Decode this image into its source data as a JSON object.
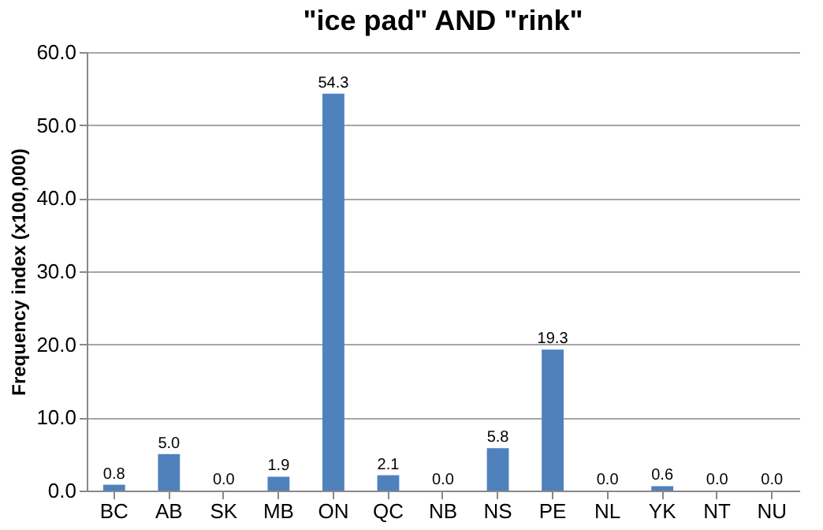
{
  "chart_data": {
    "type": "bar",
    "title": "\"ice pad\" AND \"rink\"",
    "ylabel": "Frequency index (x100,000)",
    "categories": [
      "BC",
      "AB",
      "SK",
      "MB",
      "ON",
      "QC",
      "NB",
      "NS",
      "PE",
      "NL",
      "YK",
      "NT",
      "NU"
    ],
    "values": [
      0.8,
      5.0,
      0.0,
      1.9,
      54.3,
      2.1,
      0.0,
      5.8,
      19.3,
      0.0,
      0.6,
      0.0,
      0.0
    ],
    "value_labels": [
      "0.8",
      "5.0",
      "0.0",
      "1.9",
      "54.3",
      "2.1",
      "0.0",
      "5.8",
      "19.3",
      "0.0",
      "0.6",
      "0.0",
      "0.0"
    ],
    "color": "#4f81bd",
    "ylim": [
      0,
      60
    ],
    "yticks": [
      {
        "value": 0,
        "label": "0.0"
      },
      {
        "value": 10,
        "label": "10.0"
      },
      {
        "value": 20,
        "label": "20.0"
      },
      {
        "value": 30,
        "label": "30.0"
      },
      {
        "value": 40,
        "label": "40.0"
      },
      {
        "value": 50,
        "label": "50.0"
      },
      {
        "value": 60,
        "label": "60.0"
      }
    ],
    "grid": "y"
  }
}
